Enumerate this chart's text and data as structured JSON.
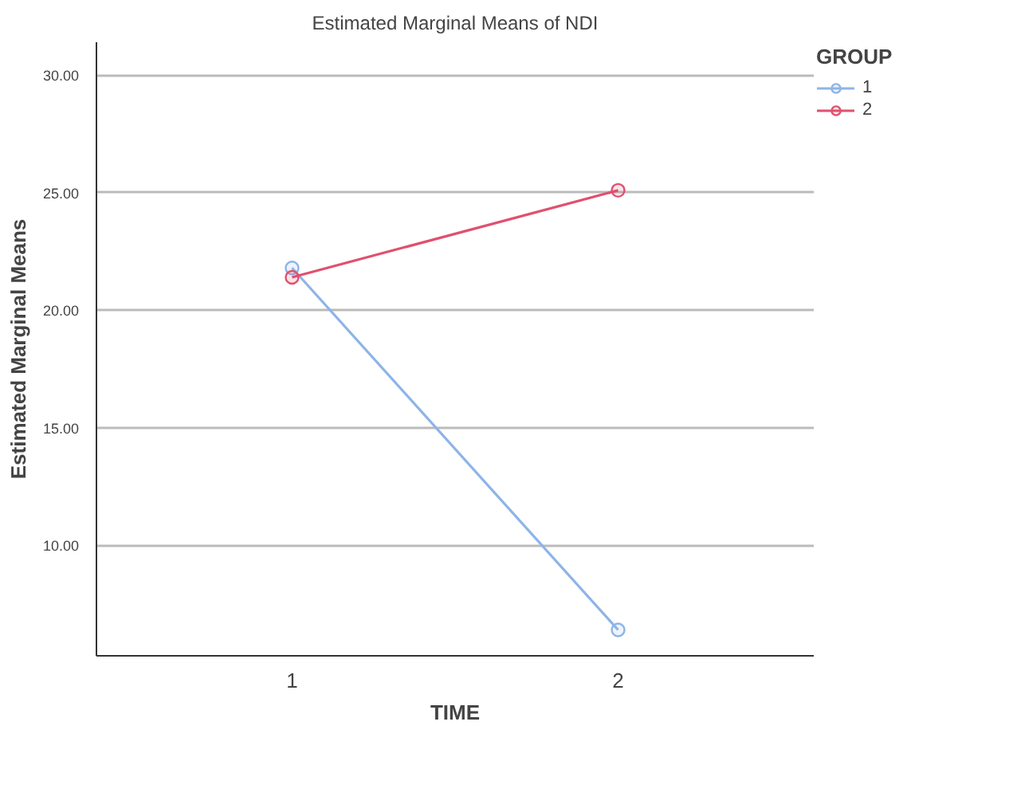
{
  "chart_data": {
    "type": "line",
    "title": "Estimated Marginal Means of NDI",
    "xlabel": "TIME",
    "ylabel": "Estimated Marginal Means",
    "legend_title": "GROUP",
    "x": [
      1,
      2
    ],
    "xlim": [
      0.4,
      2.6
    ],
    "xticks": [
      1,
      2
    ],
    "series": [
      {
        "name": "1",
        "color": "#8db4e8",
        "values": [
          21.8,
          6.4
        ]
      },
      {
        "name": "2",
        "color": "#e0506e",
        "values": [
          21.4,
          25.1
        ]
      }
    ],
    "ylim": [
      5.3,
      31.4
    ],
    "yticks": [
      {
        "value": 10,
        "label": "10.00"
      },
      {
        "value": 15,
        "label": "15.00"
      },
      {
        "value": 20,
        "label": "20.00"
      },
      {
        "value": 25,
        "label": "25.00"
      },
      {
        "value": 30,
        "label": "30.00"
      }
    ],
    "grid": "y",
    "legend": "top right",
    "marker": "circle",
    "line_style": "solid"
  }
}
